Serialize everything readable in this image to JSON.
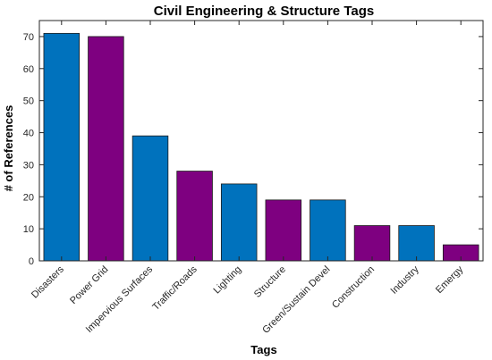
{
  "chart_data": {
    "type": "bar",
    "title": "Civil Engineering & Structure Tags",
    "xlabel": "Tags",
    "ylabel": "# of References",
    "categories": [
      "Disasters",
      "Power Grid",
      "Impervious Surfaces",
      "Traffic/Roads",
      "Lighting",
      "Structure",
      "Green/Sustain Devel",
      "Construction",
      "Industry",
      "Emergy"
    ],
    "values": [
      71,
      70,
      39,
      28,
      24,
      19,
      19,
      11,
      11,
      5
    ],
    "bar_colors": [
      "#0072BD",
      "#7E0080",
      "#0072BD",
      "#7E0080",
      "#0072BD",
      "#7E0080",
      "#0072BD",
      "#7E0080",
      "#0072BD",
      "#7E0080"
    ],
    "ylim": [
      0,
      75
    ],
    "yticks": [
      0,
      10,
      20,
      30,
      40,
      50,
      60,
      70
    ],
    "grid": false,
    "legend": "none"
  }
}
